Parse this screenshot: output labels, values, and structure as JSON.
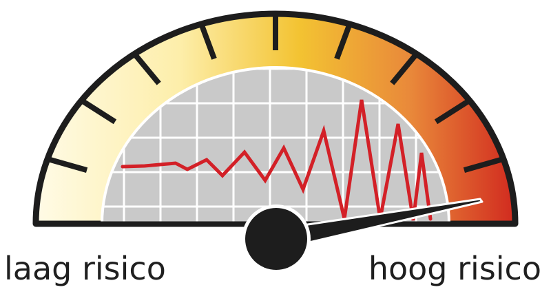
{
  "labels": {
    "low": "laag risico",
    "high": "hoog risico"
  },
  "gauge": {
    "colors": {
      "low": "#fffbe6",
      "mid_light": "#fdeeaa",
      "mid": "#f3c332",
      "high": "#e9893a",
      "max": "#d12a1f",
      "frame": "#1d1d1d",
      "grid_bg": "#c9c9c9",
      "grid_line": "#ffffff",
      "signal": "#d32027"
    },
    "needle_level": 0.96,
    "tick_count": 9
  },
  "icons": {
    "needle": "needle-icon",
    "hub": "hub-icon"
  }
}
